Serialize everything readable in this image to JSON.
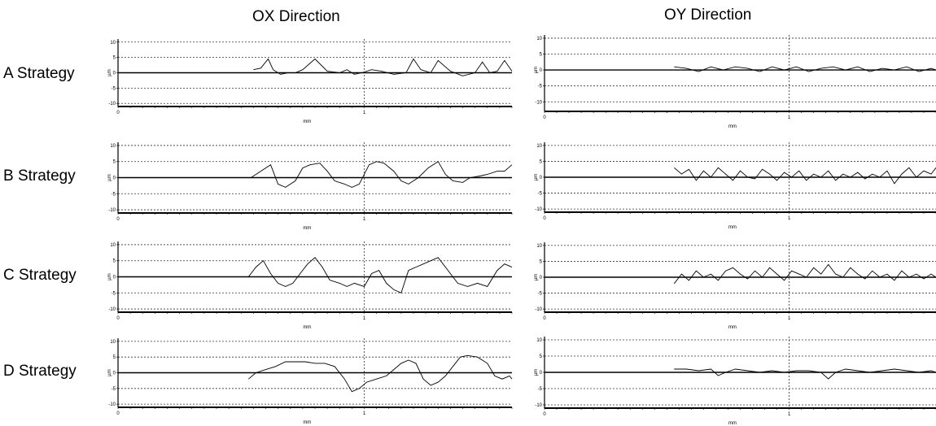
{
  "column_titles": [
    "OX Direction",
    "OY Direction"
  ],
  "row_labels": [
    "A Strategy",
    "B Strategy",
    "C Strategy",
    "D Strategy"
  ],
  "chart_data": [
    {
      "type": "line",
      "strategy": "A Strategy",
      "direction": "OX Direction",
      "xlabel": "mm",
      "ylabel": "µm",
      "xlim": [
        0,
        1.6
      ],
      "ylim": [
        -11,
        11
      ],
      "xticks": [
        "0",
        "1"
      ],
      "yticks": [
        "10",
        "5",
        "0",
        "-5",
        "-10"
      ],
      "grid": true,
      "series": [
        {
          "x": [
            0.55,
            0.58,
            0.61,
            0.63,
            0.66,
            0.69,
            0.72,
            0.75,
            0.8,
            0.85,
            0.9,
            0.93,
            0.96,
            0.99,
            1.03,
            1.07,
            1.12,
            1.17,
            1.2,
            1.23,
            1.27,
            1.3,
            1.35,
            1.4,
            1.45,
            1.48,
            1.51,
            1.54,
            1.57,
            1.6
          ],
          "y": [
            1,
            1.5,
            4.5,
            1,
            -0.5,
            0,
            0,
            1,
            4.5,
            0.5,
            0,
            1,
            -0.5,
            0,
            1,
            0.5,
            -0.5,
            0,
            4.5,
            1,
            0,
            4,
            0.5,
            -1,
            0,
            3.5,
            0,
            0.5,
            4,
            0.5
          ]
        }
      ]
    },
    {
      "type": "line",
      "strategy": "A Strategy",
      "direction": "OY Direction",
      "xlabel": "mm",
      "ylabel": "µm",
      "xlim": [
        0,
        1.6
      ],
      "ylim": [
        -13,
        11
      ],
      "xticks": [
        "0",
        "1"
      ],
      "yticks": [
        "10",
        "5",
        "0",
        "-5",
        "-10"
      ],
      "grid": true,
      "series": [
        {
          "x": [
            0.53,
            0.58,
            0.63,
            0.68,
            0.73,
            0.78,
            0.83,
            0.88,
            0.93,
            0.98,
            1.03,
            1.08,
            1.13,
            1.18,
            1.23,
            1.28,
            1.33,
            1.38,
            1.43,
            1.48,
            1.53,
            1.58,
            1.6
          ],
          "y": [
            1,
            0.5,
            -0.5,
            1,
            0,
            1,
            0.5,
            -0.5,
            1,
            0,
            1,
            -0.5,
            0.5,
            1,
            0,
            1,
            -0.5,
            0.5,
            0,
            1,
            -0.5,
            0.5,
            0
          ]
        }
      ]
    },
    {
      "type": "line",
      "strategy": "B Strategy",
      "direction": "OX Direction",
      "xlabel": "mm",
      "ylabel": "µm",
      "xlim": [
        0,
        1.6
      ],
      "ylim": [
        -11,
        11
      ],
      "xticks": [
        "0",
        "1"
      ],
      "yticks": [
        "10",
        "5",
        "0",
        "-5",
        "-10"
      ],
      "grid": true,
      "series": [
        {
          "x": [
            0.54,
            0.58,
            0.62,
            0.65,
            0.68,
            0.72,
            0.75,
            0.78,
            0.82,
            0.85,
            0.88,
            0.92,
            0.95,
            0.98,
            1.02,
            1.05,
            1.08,
            1.12,
            1.15,
            1.18,
            1.22,
            1.26,
            1.3,
            1.33,
            1.36,
            1.4,
            1.43,
            1.47,
            1.5,
            1.54,
            1.57,
            1.6
          ],
          "y": [
            0,
            2,
            4,
            -2,
            -3,
            -1,
            3,
            4,
            4.5,
            2,
            -1,
            -2,
            -3,
            -2,
            4,
            5,
            4.5,
            2,
            -1,
            -2,
            0,
            3,
            5,
            1,
            -1,
            -1.5,
            0,
            0.5,
            1,
            2,
            2,
            4
          ]
        }
      ]
    },
    {
      "type": "line",
      "strategy": "B Strategy",
      "direction": "OY Direction",
      "xlabel": "mm",
      "ylabel": "µm",
      "xlim": [
        0,
        1.6
      ],
      "ylim": [
        -11,
        11
      ],
      "xticks": [
        "0",
        "1"
      ],
      "yticks": [
        "10",
        "5",
        "0",
        "-5",
        "-10"
      ],
      "grid": true,
      "series": [
        {
          "x": [
            0.53,
            0.56,
            0.59,
            0.62,
            0.65,
            0.68,
            0.71,
            0.74,
            0.77,
            0.8,
            0.83,
            0.86,
            0.89,
            0.92,
            0.95,
            0.98,
            1.01,
            1.04,
            1.07,
            1.1,
            1.13,
            1.16,
            1.19,
            1.22,
            1.25,
            1.28,
            1.31,
            1.34,
            1.37,
            1.4,
            1.43,
            1.46,
            1.49,
            1.52,
            1.55,
            1.58,
            1.6
          ],
          "y": [
            3,
            1,
            2.5,
            -1,
            2,
            0,
            3,
            1,
            -1,
            2,
            0,
            -0.5,
            2.5,
            1,
            -1,
            1.5,
            0,
            2,
            -1,
            1,
            0,
            2,
            -1,
            1,
            0,
            1.5,
            -0.5,
            1,
            0,
            2,
            -2,
            1,
            3,
            0,
            2,
            1,
            3
          ]
        }
      ]
    },
    {
      "type": "line",
      "strategy": "C Strategy",
      "direction": "OX Direction",
      "xlabel": "mm",
      "ylabel": "µm",
      "xlim": [
        0,
        1.6
      ],
      "ylim": [
        -11,
        11
      ],
      "xticks": [
        "0",
        "1"
      ],
      "yticks": [
        "10",
        "5",
        "0",
        "-5",
        "-10"
      ],
      "grid": true,
      "series": [
        {
          "x": [
            0.53,
            0.56,
            0.59,
            0.62,
            0.65,
            0.68,
            0.71,
            0.74,
            0.77,
            0.8,
            0.83,
            0.86,
            0.9,
            0.93,
            0.96,
            1.0,
            1.03,
            1.06,
            1.09,
            1.12,
            1.15,
            1.18,
            1.21,
            1.24,
            1.27,
            1.3,
            1.34,
            1.38,
            1.42,
            1.46,
            1.5,
            1.54,
            1.57,
            1.6
          ],
          "y": [
            0,
            3,
            5,
            1,
            -2,
            -3,
            -2,
            1,
            4,
            6,
            3,
            -1,
            -2,
            -3,
            -2,
            -3,
            1,
            2,
            -2,
            -4,
            -5,
            2,
            3,
            4,
            5,
            6,
            2,
            -2,
            -3,
            -2,
            -3,
            2,
            4,
            3
          ]
        }
      ]
    },
    {
      "type": "line",
      "strategy": "C Strategy",
      "direction": "OY Direction",
      "xlabel": "mm",
      "ylabel": "µm",
      "xlim": [
        0,
        1.6
      ],
      "ylim": [
        -11,
        11
      ],
      "xticks": [
        "0",
        "1"
      ],
      "yticks": [
        "10",
        "5",
        "0",
        "-5",
        "-10"
      ],
      "grid": true,
      "series": [
        {
          "x": [
            0.53,
            0.56,
            0.59,
            0.62,
            0.65,
            0.68,
            0.71,
            0.74,
            0.77,
            0.8,
            0.83,
            0.86,
            0.89,
            0.92,
            0.95,
            0.98,
            1.01,
            1.04,
            1.07,
            1.1,
            1.13,
            1.16,
            1.19,
            1.22,
            1.25,
            1.28,
            1.31,
            1.34,
            1.37,
            1.4,
            1.43,
            1.46,
            1.49,
            1.52,
            1.55,
            1.58,
            1.6
          ],
          "y": [
            -2,
            1,
            -1,
            2,
            0,
            1,
            -1,
            2,
            3,
            1,
            -0.5,
            2,
            0,
            3,
            1,
            -1,
            2,
            1,
            0,
            3,
            1,
            4,
            1,
            0,
            3,
            1,
            -0.5,
            2,
            0,
            1,
            -1,
            2,
            0,
            1,
            -0.5,
            1,
            0
          ]
        }
      ]
    },
    {
      "type": "line",
      "strategy": "D Strategy",
      "direction": "OX Direction",
      "xlabel": "mm",
      "ylabel": "µm",
      "xlim": [
        0,
        1.6
      ],
      "ylim": [
        -11,
        11
      ],
      "xticks": [
        "0",
        "1"
      ],
      "yticks": [
        "10",
        "5",
        "0",
        "-5",
        "-10"
      ],
      "grid": true,
      "series": [
        {
          "x": [
            0.53,
            0.56,
            0.6,
            0.64,
            0.68,
            0.72,
            0.76,
            0.8,
            0.84,
            0.88,
            0.92,
            0.95,
            0.98,
            1.01,
            1.05,
            1.09,
            1.12,
            1.15,
            1.18,
            1.21,
            1.24,
            1.27,
            1.3,
            1.33,
            1.36,
            1.39,
            1.42,
            1.46,
            1.5,
            1.53,
            1.56,
            1.59,
            1.6
          ],
          "y": [
            -2,
            0,
            1,
            2,
            3.5,
            3.5,
            3.5,
            3,
            3,
            2,
            -2,
            -6,
            -5,
            -3,
            -2,
            -1,
            1,
            3,
            4,
            3,
            -2,
            -4,
            -3,
            -1,
            2,
            5,
            5.5,
            5,
            3,
            -1,
            -2,
            -1,
            -2
          ]
        }
      ]
    },
    {
      "type": "line",
      "strategy": "D Strategy",
      "direction": "OY Direction",
      "xlabel": "mm",
      "ylabel": "µm",
      "xlim": [
        0,
        1.6
      ],
      "ylim": [
        -11,
        11
      ],
      "xticks": [
        "0",
        "1"
      ],
      "yticks": [
        "10",
        "5",
        "0",
        "-5",
        "-10"
      ],
      "grid": true,
      "series": [
        {
          "x": [
            0.53,
            0.58,
            0.63,
            0.68,
            0.71,
            0.74,
            0.78,
            0.83,
            0.88,
            0.93,
            0.98,
            1.03,
            1.08,
            1.13,
            1.16,
            1.19,
            1.23,
            1.28,
            1.33,
            1.38,
            1.43,
            1.48,
            1.53,
            1.58,
            1.6
          ],
          "y": [
            1,
            1,
            0.5,
            1,
            -1,
            0,
            1,
            0.5,
            0,
            0.5,
            0,
            0.5,
            0.5,
            0,
            -2,
            0,
            1,
            0.5,
            0,
            0.5,
            1,
            0.5,
            0,
            0.5,
            0
          ]
        }
      ]
    }
  ]
}
